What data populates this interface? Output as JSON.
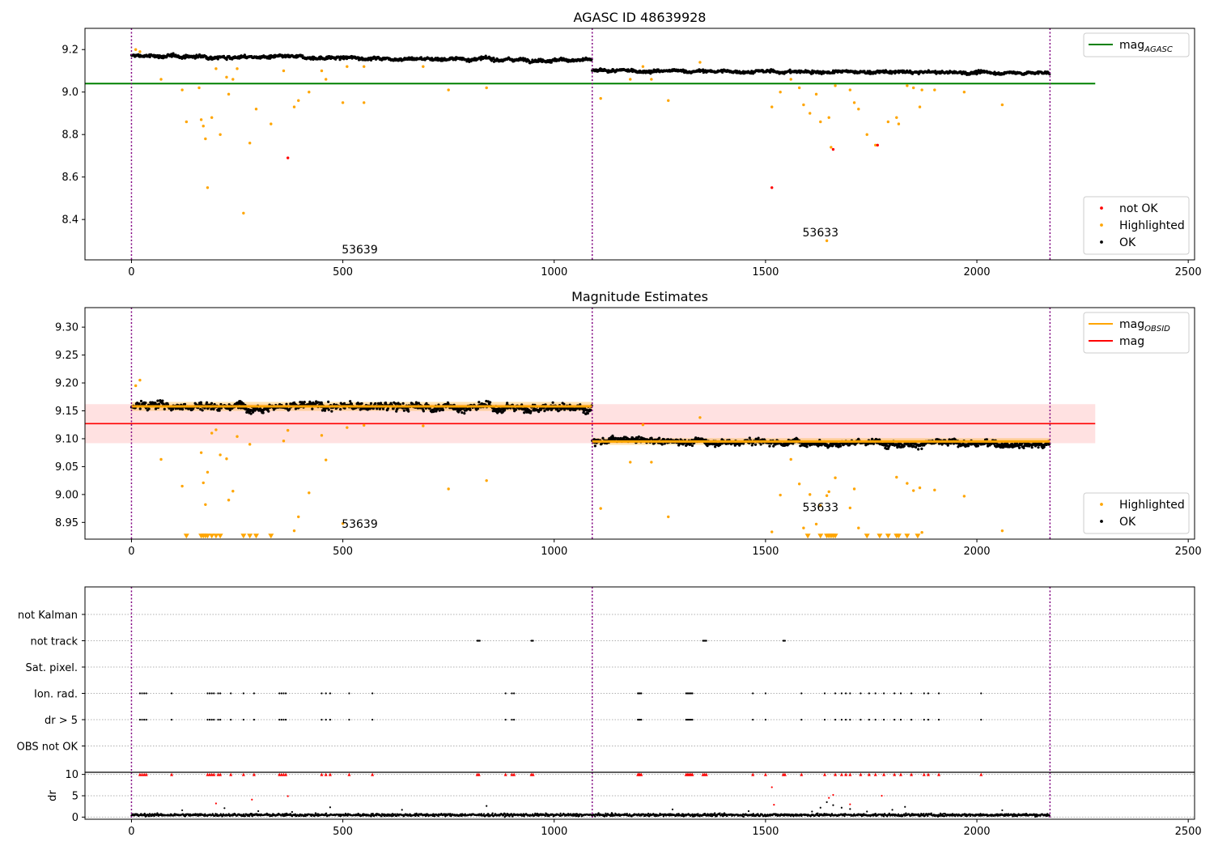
{
  "chart_data": [
    {
      "type": "scatter",
      "title": "AGASC ID 48639928",
      "xlim": [
        -110,
        2515
      ],
      "ylim": [
        8.21,
        9.3
      ],
      "xticks": [
        0,
        500,
        1000,
        1500,
        2000,
        2500
      ],
      "yticks": [
        8.4,
        8.6,
        8.8,
        9.0,
        9.2
      ],
      "ytick_decimals": 1,
      "grid": false,
      "legend_upper": {
        "position": "upper-right",
        "entries": [
          {
            "label": "mag",
            "sub": "AGASC",
            "color": "#008000"
          }
        ]
      },
      "legend_lower": {
        "position": "lower-right",
        "entries": [
          {
            "label": "not OK",
            "color": "#ff0000"
          },
          {
            "label": "Highlighted",
            "color": "#ffa500"
          },
          {
            "label": "OK",
            "color": "#000000"
          }
        ]
      },
      "hline": {
        "y": 9.04,
        "x": [
          -110,
          2280
        ],
        "color": "#008000"
      },
      "obs_boundaries": [
        0,
        1090,
        2173
      ],
      "obs_labels": [
        {
          "text": "53639",
          "x": 540,
          "y": 8.24
        },
        {
          "text": "53633",
          "x": 1630,
          "y": 8.32
        }
      ],
      "segments": [
        {
          "x": [
            0,
            1090
          ],
          "y": [
            9.17,
            9.15
          ],
          "noise": 0.012
        },
        {
          "x": [
            1090,
            2173
          ],
          "y": [
            9.1,
            9.09
          ],
          "noise": 0.011
        }
      ],
      "series": [
        {
          "name": "Highlighted",
          "color": "#ffa500",
          "x": [
            10,
            20,
            70,
            120,
            130,
            160,
            165,
            170,
            175,
            180,
            190,
            200,
            210,
            225,
            230,
            240,
            250,
            265,
            280,
            295,
            330,
            360,
            385,
            395,
            420,
            450,
            460,
            500,
            510,
            550,
            550,
            690,
            750,
            840,
            1110,
            1180,
            1210,
            1230,
            1270,
            1345,
            1515,
            1535,
            1560,
            1580,
            1590,
            1605,
            1620,
            1630,
            1645,
            1650,
            1655,
            1665,
            1700,
            1710,
            1720,
            1740,
            1760,
            1790,
            1810,
            1815,
            1835,
            1850,
            1865,
            1870,
            1900,
            1970,
            2060
          ],
          "y": [
            9.2,
            9.19,
            9.06,
            9.01,
            8.86,
            9.02,
            8.87,
            8.84,
            8.78,
            8.55,
            8.88,
            9.11,
            8.8,
            9.07,
            8.99,
            9.06,
            9.11,
            8.43,
            8.76,
            8.92,
            8.85,
            9.1,
            8.93,
            8.96,
            9.0,
            9.1,
            9.06,
            8.95,
            9.12,
            9.12,
            8.95,
            9.12,
            9.01,
            9.02,
            8.97,
            9.06,
            9.12,
            9.06,
            8.96,
            9.14,
            8.93,
            9.0,
            9.06,
            9.02,
            8.94,
            8.9,
            8.99,
            8.86,
            8.3,
            8.88,
            8.74,
            9.03,
            9.01,
            8.95,
            8.92,
            8.8,
            8.75,
            8.86,
            8.88,
            8.85,
            9.03,
            9.02,
            8.93,
            9.01,
            9.01,
            9.0,
            8.94
          ]
        },
        {
          "name": "not OK",
          "color": "#ff0000",
          "x": [
            370,
            1515,
            1660,
            1765
          ],
          "y": [
            8.69,
            8.55,
            8.73,
            8.75
          ]
        }
      ]
    },
    {
      "type": "scatter",
      "title": "Magnitude Estimates",
      "xlim": [
        -110,
        2515
      ],
      "ylim": [
        8.92,
        9.335
      ],
      "xticks": [
        0,
        500,
        1000,
        1500,
        2000,
        2500
      ],
      "yticks": [
        8.95,
        9.0,
        9.05,
        9.1,
        9.15,
        9.2,
        9.25,
        9.3
      ],
      "ytick_decimals": 2,
      "grid": false,
      "legend_upper": {
        "position": "upper-right",
        "entries": [
          {
            "label": "mag",
            "sub": "OBSID",
            "color": "#ffa500"
          },
          {
            "label": "mag",
            "color": "#ff0000"
          }
        ]
      },
      "legend_lower": {
        "position": "lower-right",
        "entries": [
          {
            "label": "Highlighted",
            "color": "#ffa500"
          },
          {
            "label": "OK",
            "color": "#000000"
          }
        ]
      },
      "band": {
        "y": [
          9.092,
          9.162
        ],
        "x": [
          -110,
          2280
        ],
        "color": "#ffc8c8"
      },
      "hline": {
        "y": 9.127,
        "x": [
          -110,
          2280
        ],
        "color": "#ff0000"
      },
      "obsid_mag": [
        {
          "x": [
            0,
            1090
          ],
          "y": 9.158,
          "err": 0.008
        },
        {
          "x": [
            1090,
            2173
          ],
          "y": 9.095,
          "err": 0.006
        }
      ],
      "obs_boundaries": [
        0,
        1090,
        2173
      ],
      "obs_labels": [
        {
          "text": "53639",
          "x": 540,
          "y": 8.94
        },
        {
          "text": "53633",
          "x": 1630,
          "y": 8.97
        }
      ],
      "segments": [
        {
          "x": [
            0,
            1090
          ],
          "y": [
            9.16,
            9.155
          ],
          "noise": 0.011
        },
        {
          "x": [
            1090,
            2173
          ],
          "y": [
            9.097,
            9.09
          ],
          "noise": 0.009
        }
      ],
      "series": [
        {
          "name": "Highlighted",
          "color": "#ffa500",
          "x": [
            10,
            20,
            70,
            120,
            165,
            170,
            175,
            180,
            190,
            200,
            210,
            225,
            230,
            240,
            250,
            280,
            360,
            370,
            385,
            395,
            420,
            450,
            460,
            500,
            510,
            550,
            690,
            750,
            840,
            1110,
            1180,
            1210,
            1230,
            1270,
            1345,
            1515,
            1535,
            1560,
            1580,
            1590,
            1605,
            1620,
            1630,
            1645,
            1650,
            1665,
            1700,
            1710,
            1720,
            1810,
            1835,
            1850,
            1865,
            1870,
            1900,
            1970,
            2060
          ],
          "y": [
            9.195,
            9.205,
            9.063,
            9.015,
            9.075,
            9.021,
            8.982,
            9.04,
            9.11,
            9.116,
            9.071,
            9.064,
            8.99,
            9.006,
            9.104,
            9.09,
            9.096,
            9.115,
            8.935,
            8.96,
            9.003,
            9.106,
            9.062,
            8.948,
            9.12,
            9.124,
            9.123,
            9.01,
            9.025,
            8.975,
            9.058,
            9.125,
            9.058,
            8.96,
            9.138,
            8.933,
            8.999,
            9.063,
            9.019,
            8.94,
            9.0,
            8.947,
            8.98,
            8.998,
            9.005,
            9.03,
            8.976,
            9.01,
            8.94,
            9.031,
            9.02,
            9.007,
            9.012,
            8.932,
            9.008,
            8.997,
            8.935
          ]
        },
        {
          "name": "Highlighted (off-scale)",
          "color": "#ffa500",
          "marker": "triangle-down",
          "x": [
            130,
            165,
            170,
            175,
            180,
            190,
            200,
            210,
            265,
            280,
            295,
            330,
            1600,
            1630,
            1645,
            1650,
            1655,
            1660,
            1665,
            1740,
            1770,
            1790,
            1810,
            1815,
            1835,
            1860
          ],
          "y": [
            8.9255,
            8.9255,
            8.9255,
            8.9255,
            8.9255,
            8.9255,
            8.9255,
            8.9255,
            8.9255,
            8.9255,
            8.9255,
            8.9255,
            8.9255,
            8.9255,
            8.9255,
            8.9255,
            8.9255,
            8.9255,
            8.9255,
            8.9255,
            8.9255,
            8.9255,
            8.9255,
            8.9255,
            8.9255,
            8.9255
          ]
        }
      ]
    },
    {
      "type": "scatter",
      "title": "",
      "xlim": [
        -110,
        2515
      ],
      "xticks": [
        0,
        500,
        1000,
        1500,
        2000,
        2500
      ],
      "categories": [
        "not Kalman",
        "not track",
        "Sat. pixel.",
        "Ion. rad.",
        "dr > 5",
        "OBS not OK"
      ],
      "grid": true,
      "obs_boundaries": [
        0,
        1090,
        2173
      ],
      "flags": {
        "not Kalman": [],
        "not track": [
          818,
          820,
          822,
          824,
          946,
          948,
          950,
          1352,
          1354,
          1356,
          1358,
          1360,
          1542,
          1544,
          1546
        ],
        "Sat. pixel.": [],
        "Ion. rad.": [
          20,
          25,
          30,
          35,
          95,
          180,
          185,
          190,
          195,
          205,
          210,
          235,
          265,
          290,
          350,
          355,
          360,
          365,
          450,
          460,
          470,
          515,
          570,
          885,
          900,
          905,
          1198,
          1200,
          1203,
          1206,
          1312,
          1315,
          1318,
          1321,
          1324,
          1327,
          1470,
          1500,
          1585,
          1640,
          1665,
          1680,
          1690,
          1700,
          1725,
          1745,
          1760,
          1780,
          1805,
          1820,
          1845,
          1875,
          1885,
          1910,
          2010
        ],
        "dr > 5": [
          20,
          25,
          30,
          35,
          95,
          180,
          185,
          190,
          195,
          205,
          210,
          235,
          265,
          290,
          350,
          355,
          360,
          365,
          450,
          460,
          470,
          515,
          570,
          885,
          900,
          905,
          1198,
          1200,
          1203,
          1206,
          1312,
          1315,
          1318,
          1321,
          1324,
          1327,
          1470,
          1500,
          1585,
          1640,
          1665,
          1680,
          1690,
          1700,
          1725,
          1745,
          1760,
          1780,
          1805,
          1820,
          1845,
          1875,
          1885,
          1910,
          2010
        ],
        "OBS not OK": []
      }
    },
    {
      "type": "scatter",
      "title": "",
      "ylabel": "dr",
      "xlim": [
        -110,
        2515
      ],
      "ylim": [
        -0.5,
        10.5
      ],
      "xticks": [
        0,
        500,
        1000,
        1500,
        2000,
        2500
      ],
      "yticks": [
        0,
        5,
        10
      ],
      "grid": true,
      "obs_boundaries": [
        0,
        1090,
        2173
      ],
      "base": {
        "x": [
          0,
          2173
        ],
        "y_mean": 0.5,
        "noise": 0.3
      },
      "capped": {
        "y": 10,
        "color": "#ff0000",
        "x": [
          20,
          25,
          30,
          35,
          95,
          180,
          185,
          190,
          195,
          205,
          210,
          235,
          265,
          290,
          350,
          355,
          360,
          365,
          450,
          460,
          470,
          515,
          570,
          818,
          822,
          885,
          900,
          905,
          946,
          950,
          1198,
          1200,
          1203,
          1206,
          1312,
          1315,
          1318,
          1321,
          1324,
          1327,
          1352,
          1356,
          1360,
          1470,
          1500,
          1542,
          1546,
          1585,
          1640,
          1665,
          1680,
          1690,
          1700,
          1725,
          1745,
          1760,
          1780,
          1805,
          1820,
          1845,
          1875,
          1885,
          1910,
          2010
        ]
      },
      "series": [
        {
          "name": "dr (red)",
          "color": "#ff0000",
          "x": [
            200,
            285,
            370,
            1515,
            1520,
            1650,
            1660,
            1700,
            1775
          ],
          "y": [
            3.2,
            4.1,
            4.9,
            7.0,
            2.9,
            4.5,
            5.2,
            3.0,
            5.0
          ]
        },
        {
          "name": "dr (scatter)",
          "color": "#000000",
          "x": [
            120,
            220,
            300,
            380,
            470,
            640,
            840,
            1280,
            1460,
            1610,
            1630,
            1645,
            1660,
            1680,
            1700,
            1740,
            1800,
            1830,
            2060
          ],
          "y": [
            1.6,
            2.1,
            1.4,
            1.2,
            2.3,
            1.7,
            2.6,
            1.8,
            1.4,
            1.3,
            2.2,
            3.5,
            2.8,
            2.2,
            1.9,
            1.3,
            1.7,
            2.4,
            1.6
          ]
        }
      ]
    }
  ]
}
